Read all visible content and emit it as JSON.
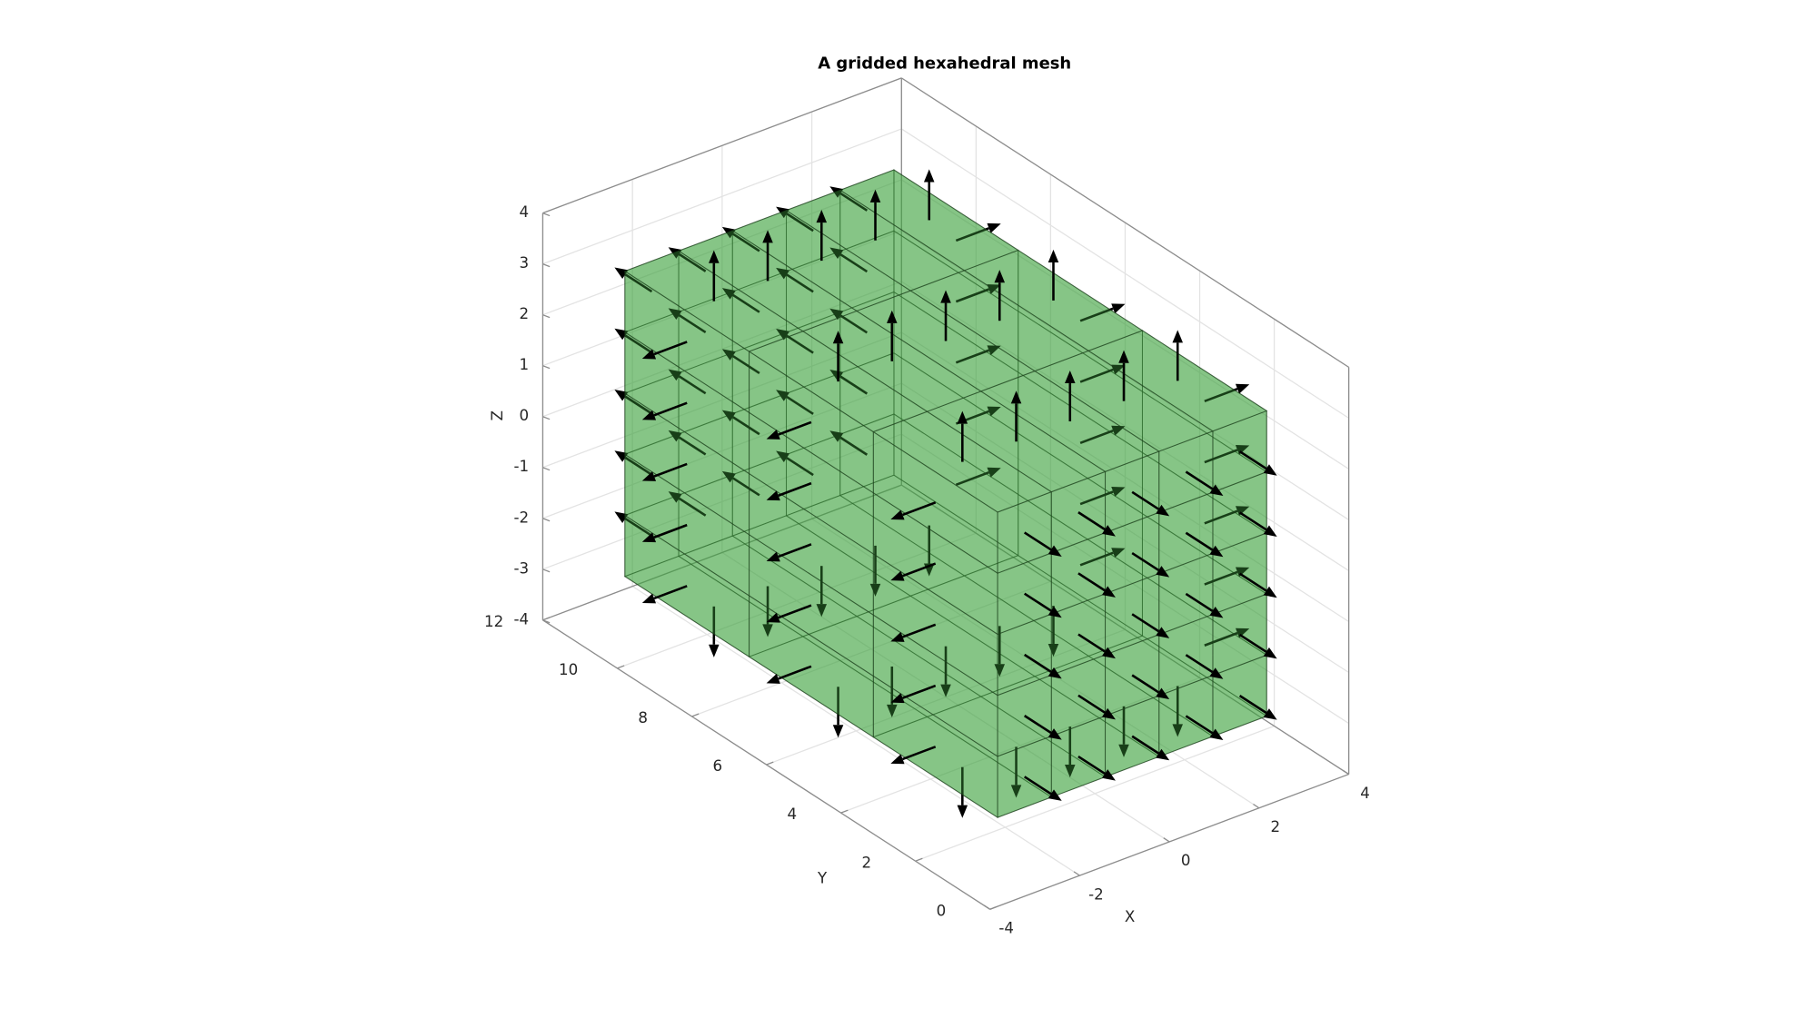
{
  "chart_data": {
    "type": "mesh3d",
    "title": "A gridded hexahedral mesh",
    "xlabel": "X",
    "ylabel": "Y",
    "zlabel": "Z",
    "xlim": [
      -4,
      4
    ],
    "ylim": [
      0,
      12
    ],
    "zlim": [
      -4,
      4
    ],
    "xticks": [
      -4,
      -2,
      0,
      2,
      4
    ],
    "yticks": [
      0,
      2,
      4,
      6,
      8,
      10,
      12
    ],
    "zticks": [
      -4,
      -3,
      -2,
      -1,
      0,
      1,
      2,
      3,
      4
    ],
    "grid": true,
    "mesh": {
      "x": [
        -3,
        3
      ],
      "y": [
        1,
        11
      ],
      "z": [
        -3,
        3
      ],
      "divisions": [
        5,
        3,
        5
      ]
    },
    "color": "#3fa33f",
    "face_alpha": 0.78,
    "normals": true
  }
}
